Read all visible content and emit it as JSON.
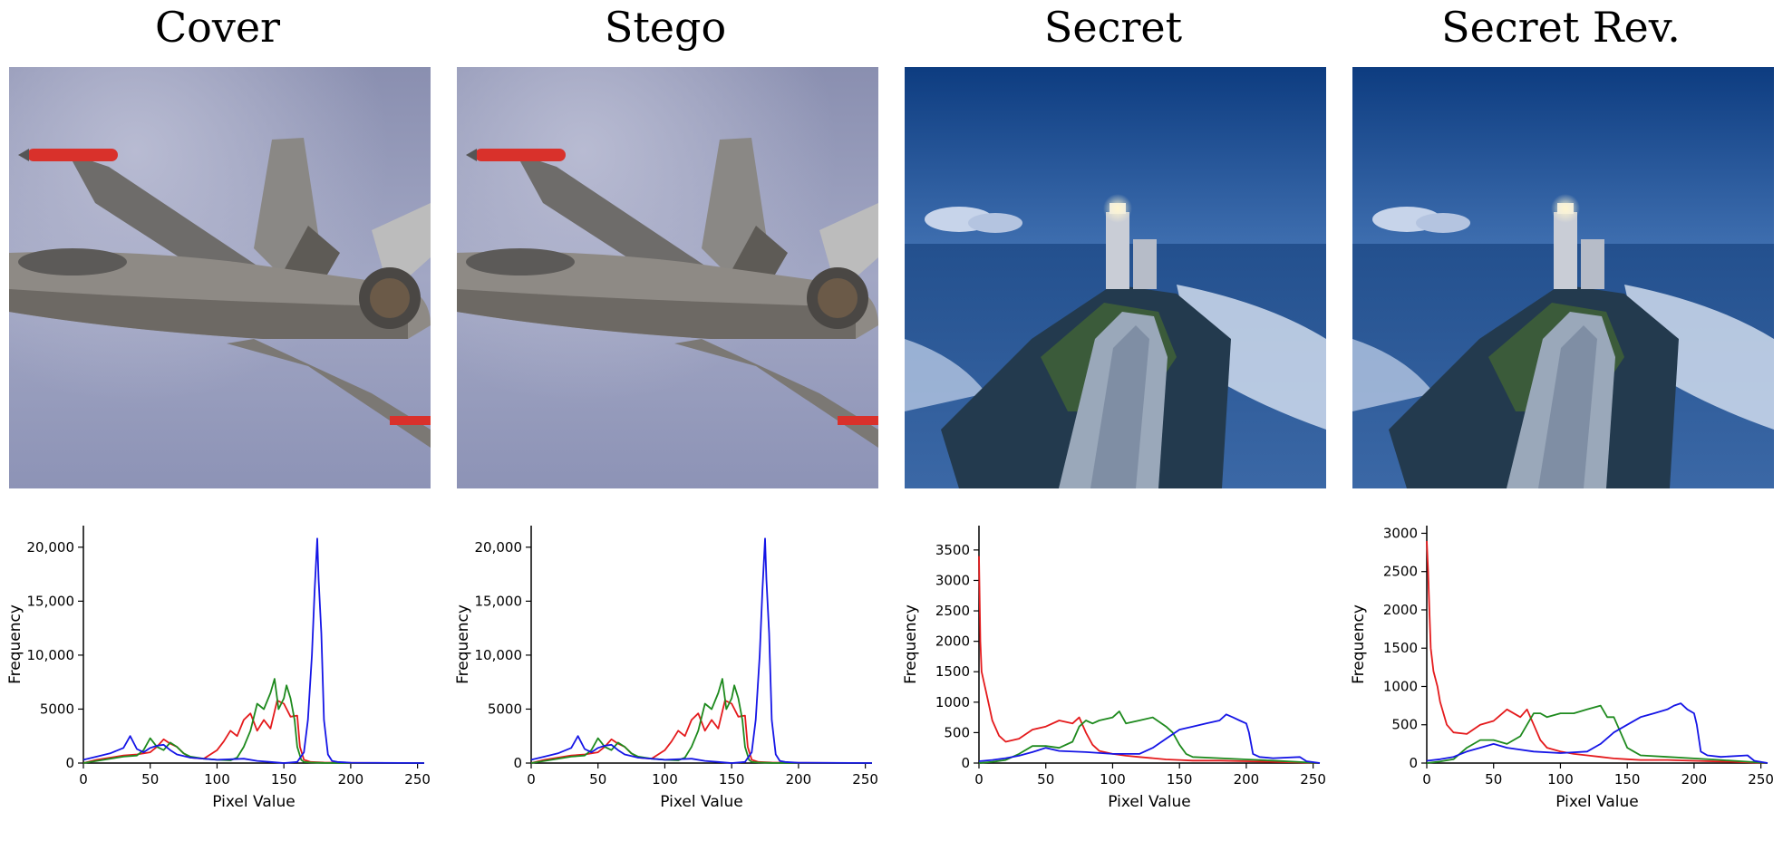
{
  "panels": [
    {
      "title": "Cover",
      "image": "fighter-jet-photo"
    },
    {
      "title": "Stego",
      "image": "fighter-jet-photo"
    },
    {
      "title": "Secret",
      "image": "lighthouse-photo"
    },
    {
      "title": "Secret Rev.",
      "image": "lighthouse-photo"
    }
  ],
  "colors": {
    "red": "#e41a1c",
    "green": "#1e8a1e",
    "blue": "#1515e6"
  },
  "chart_data": [
    {
      "type": "line",
      "title": "Cover",
      "xlabel": "Pixel Value",
      "ylabel": "Frequency",
      "xlim": [
        0,
        255
      ],
      "ylim": [
        0,
        22000
      ],
      "xticks": [
        0,
        50,
        100,
        150,
        200,
        250
      ],
      "yticks": [
        0,
        5000,
        10000,
        15000,
        20000
      ],
      "ytick_labels": [
        "0",
        "5000",
        "10,000",
        "15,000",
        "20,000"
      ],
      "series": [
        {
          "name": "red",
          "x": [
            0,
            10,
            20,
            30,
            40,
            50,
            55,
            60,
            65,
            70,
            75,
            80,
            90,
            100,
            105,
            110,
            115,
            120,
            125,
            130,
            135,
            140,
            145,
            150,
            155,
            160,
            162,
            165,
            170,
            180,
            200,
            255
          ],
          "y": [
            0,
            300,
            500,
            700,
            800,
            1000,
            1500,
            2200,
            1800,
            1500,
            900,
            500,
            400,
            1200,
            2000,
            3000,
            2500,
            4000,
            4600,
            3000,
            4000,
            3200,
            5800,
            5500,
            4300,
            4400,
            1500,
            300,
            100,
            50,
            20,
            0
          ]
        },
        {
          "name": "green",
          "x": [
            0,
            10,
            20,
            30,
            40,
            45,
            50,
            55,
            60,
            65,
            70,
            75,
            80,
            90,
            100,
            110,
            115,
            120,
            125,
            130,
            135,
            140,
            143,
            146,
            150,
            152,
            155,
            158,
            160,
            163,
            165,
            170,
            180,
            255
          ],
          "y": [
            0,
            200,
            400,
            600,
            700,
            1200,
            2300,
            1500,
            1200,
            1900,
            1500,
            900,
            600,
            400,
            300,
            250,
            500,
            1500,
            3000,
            5500,
            5000,
            6500,
            7800,
            5000,
            6000,
            7200,
            6000,
            4000,
            1500,
            300,
            100,
            50,
            20,
            0
          ]
        },
        {
          "name": "blue",
          "x": [
            0,
            10,
            20,
            30,
            35,
            40,
            45,
            50,
            55,
            60,
            65,
            70,
            80,
            100,
            120,
            130,
            140,
            150,
            160,
            165,
            168,
            171,
            173,
            175,
            176,
            178,
            180,
            183,
            186,
            190,
            200,
            255
          ],
          "y": [
            300,
            600,
            900,
            1400,
            2500,
            1300,
            1000,
            1400,
            1600,
            1700,
            1200,
            800,
            500,
            300,
            400,
            200,
            100,
            0,
            100,
            1000,
            4000,
            10000,
            16000,
            20800,
            17000,
            12000,
            4000,
            800,
            200,
            100,
            30,
            0
          ]
        }
      ]
    },
    {
      "type": "line",
      "title": "Stego",
      "xlabel": "Pixel Value",
      "ylabel": "Frequency",
      "xlim": [
        0,
        255
      ],
      "ylim": [
        0,
        22000
      ],
      "xticks": [
        0,
        50,
        100,
        150,
        200,
        250
      ],
      "yticks": [
        0,
        5000,
        10000,
        15000,
        20000
      ],
      "ytick_labels": [
        "0",
        "5000",
        "10,000",
        "15,000",
        "20,000"
      ],
      "series": [
        {
          "name": "red",
          "x": [
            0,
            10,
            20,
            30,
            40,
            50,
            55,
            60,
            65,
            70,
            75,
            80,
            90,
            100,
            105,
            110,
            115,
            120,
            125,
            130,
            135,
            140,
            145,
            150,
            155,
            160,
            162,
            165,
            170,
            180,
            200,
            255
          ],
          "y": [
            0,
            300,
            500,
            700,
            800,
            1000,
            1500,
            2200,
            1800,
            1500,
            900,
            500,
            400,
            1200,
            2000,
            3000,
            2500,
            4000,
            4600,
            3000,
            4000,
            3200,
            5800,
            5500,
            4300,
            4400,
            1500,
            300,
            100,
            50,
            20,
            0
          ]
        },
        {
          "name": "green",
          "x": [
            0,
            10,
            20,
            30,
            40,
            45,
            50,
            55,
            60,
            65,
            70,
            75,
            80,
            90,
            100,
            110,
            115,
            120,
            125,
            130,
            135,
            140,
            143,
            146,
            150,
            152,
            155,
            158,
            160,
            163,
            165,
            170,
            180,
            255
          ],
          "y": [
            0,
            200,
            400,
            600,
            700,
            1200,
            2300,
            1500,
            1200,
            1900,
            1500,
            900,
            600,
            400,
            300,
            250,
            500,
            1500,
            3000,
            5500,
            5000,
            6500,
            7800,
            5000,
            6000,
            7200,
            6000,
            4000,
            1500,
            300,
            100,
            50,
            20,
            0
          ]
        },
        {
          "name": "blue",
          "x": [
            0,
            10,
            20,
            30,
            35,
            40,
            45,
            50,
            55,
            60,
            65,
            70,
            80,
            100,
            120,
            130,
            140,
            150,
            160,
            165,
            168,
            171,
            173,
            175,
            176,
            178,
            180,
            183,
            186,
            190,
            200,
            255
          ],
          "y": [
            300,
            600,
            900,
            1400,
            2500,
            1300,
            1000,
            1400,
            1600,
            1700,
            1200,
            800,
            500,
            300,
            400,
            200,
            100,
            0,
            100,
            1000,
            4000,
            10000,
            16000,
            20800,
            17000,
            12000,
            4000,
            800,
            200,
            100,
            30,
            0
          ]
        }
      ]
    },
    {
      "type": "line",
      "title": "Secret",
      "xlabel": "Pixel Value",
      "ylabel": "Frequency",
      "xlim": [
        0,
        255
      ],
      "ylim": [
        0,
        3900
      ],
      "xticks": [
        0,
        50,
        100,
        150,
        200,
        250
      ],
      "yticks": [
        0,
        500,
        1000,
        1500,
        2000,
        2500,
        3000,
        3500
      ],
      "ytick_labels": [
        "0",
        "500",
        "1000",
        "1500",
        "2000",
        "2500",
        "3000",
        "3500"
      ],
      "series": [
        {
          "name": "red",
          "x": [
            0,
            1,
            2,
            3,
            5,
            8,
            10,
            15,
            20,
            30,
            40,
            50,
            60,
            70,
            75,
            80,
            85,
            90,
            100,
            110,
            120,
            130,
            140,
            150,
            160,
            180,
            200,
            220,
            240,
            255
          ],
          "y": [
            3400,
            2000,
            1500,
            1400,
            1200,
            900,
            700,
            450,
            350,
            400,
            550,
            600,
            700,
            650,
            750,
            500,
            300,
            200,
            150,
            120,
            100,
            80,
            60,
            50,
            40,
            40,
            30,
            20,
            10,
            0
          ]
        },
        {
          "name": "green",
          "x": [
            0,
            10,
            20,
            30,
            40,
            50,
            60,
            70,
            75,
            80,
            85,
            90,
            100,
            105,
            110,
            120,
            130,
            140,
            145,
            150,
            155,
            160,
            180,
            200,
            220,
            255
          ],
          "y": [
            0,
            20,
            50,
            150,
            280,
            280,
            250,
            350,
            600,
            700,
            650,
            700,
            750,
            850,
            650,
            700,
            750,
            600,
            500,
            300,
            150,
            100,
            80,
            60,
            40,
            0
          ]
        },
        {
          "name": "blue",
          "x": [
            0,
            10,
            20,
            30,
            40,
            50,
            60,
            80,
            100,
            120,
            130,
            140,
            150,
            160,
            170,
            180,
            185,
            190,
            195,
            200,
            202,
            205,
            210,
            220,
            240,
            245,
            255
          ],
          "y": [
            30,
            50,
            80,
            120,
            180,
            250,
            200,
            180,
            150,
            150,
            250,
            400,
            550,
            600,
            650,
            700,
            800,
            750,
            700,
            650,
            500,
            150,
            100,
            80,
            100,
            30,
            0
          ]
        }
      ]
    },
    {
      "type": "line",
      "title": "Secret Rev.",
      "xlabel": "Pixel Value",
      "ylabel": "Frequency",
      "xlim": [
        0,
        255
      ],
      "ylim": [
        0,
        3100
      ],
      "xticks": [
        0,
        50,
        100,
        150,
        200,
        250
      ],
      "yticks": [
        0,
        500,
        1000,
        1500,
        2000,
        2500,
        3000
      ],
      "ytick_labels": [
        "0",
        "500",
        "1000",
        "1500",
        "2000",
        "2500",
        "3000"
      ],
      "series": [
        {
          "name": "red",
          "x": [
            0,
            1,
            2,
            3,
            5,
            8,
            10,
            15,
            20,
            30,
            40,
            50,
            60,
            70,
            75,
            80,
            85,
            90,
            100,
            110,
            120,
            130,
            140,
            150,
            160,
            180,
            200,
            220,
            240,
            255
          ],
          "y": [
            2900,
            2500,
            2000,
            1500,
            1200,
            1000,
            800,
            500,
            400,
            380,
            500,
            550,
            700,
            600,
            700,
            500,
            300,
            200,
            150,
            120,
            100,
            80,
            60,
            50,
            40,
            40,
            30,
            20,
            10,
            0
          ]
        },
        {
          "name": "green",
          "x": [
            0,
            10,
            20,
            30,
            40,
            50,
            60,
            70,
            75,
            80,
            85,
            90,
            100,
            110,
            120,
            130,
            135,
            140,
            145,
            150,
            155,
            160,
            180,
            200,
            220,
            255
          ],
          "y": [
            0,
            20,
            50,
            200,
            300,
            300,
            250,
            350,
            500,
            650,
            650,
            600,
            650,
            650,
            700,
            750,
            600,
            600,
            400,
            200,
            150,
            100,
            80,
            60,
            40,
            0
          ]
        },
        {
          "name": "blue",
          "x": [
            0,
            10,
            20,
            30,
            40,
            50,
            60,
            80,
            100,
            120,
            130,
            140,
            150,
            160,
            170,
            180,
            185,
            190,
            195,
            200,
            202,
            205,
            210,
            220,
            240,
            245,
            255
          ],
          "y": [
            30,
            50,
            80,
            150,
            200,
            250,
            200,
            150,
            130,
            150,
            250,
            400,
            500,
            600,
            650,
            700,
            750,
            780,
            700,
            650,
            500,
            150,
            100,
            80,
            100,
            30,
            0
          ]
        }
      ]
    }
  ]
}
